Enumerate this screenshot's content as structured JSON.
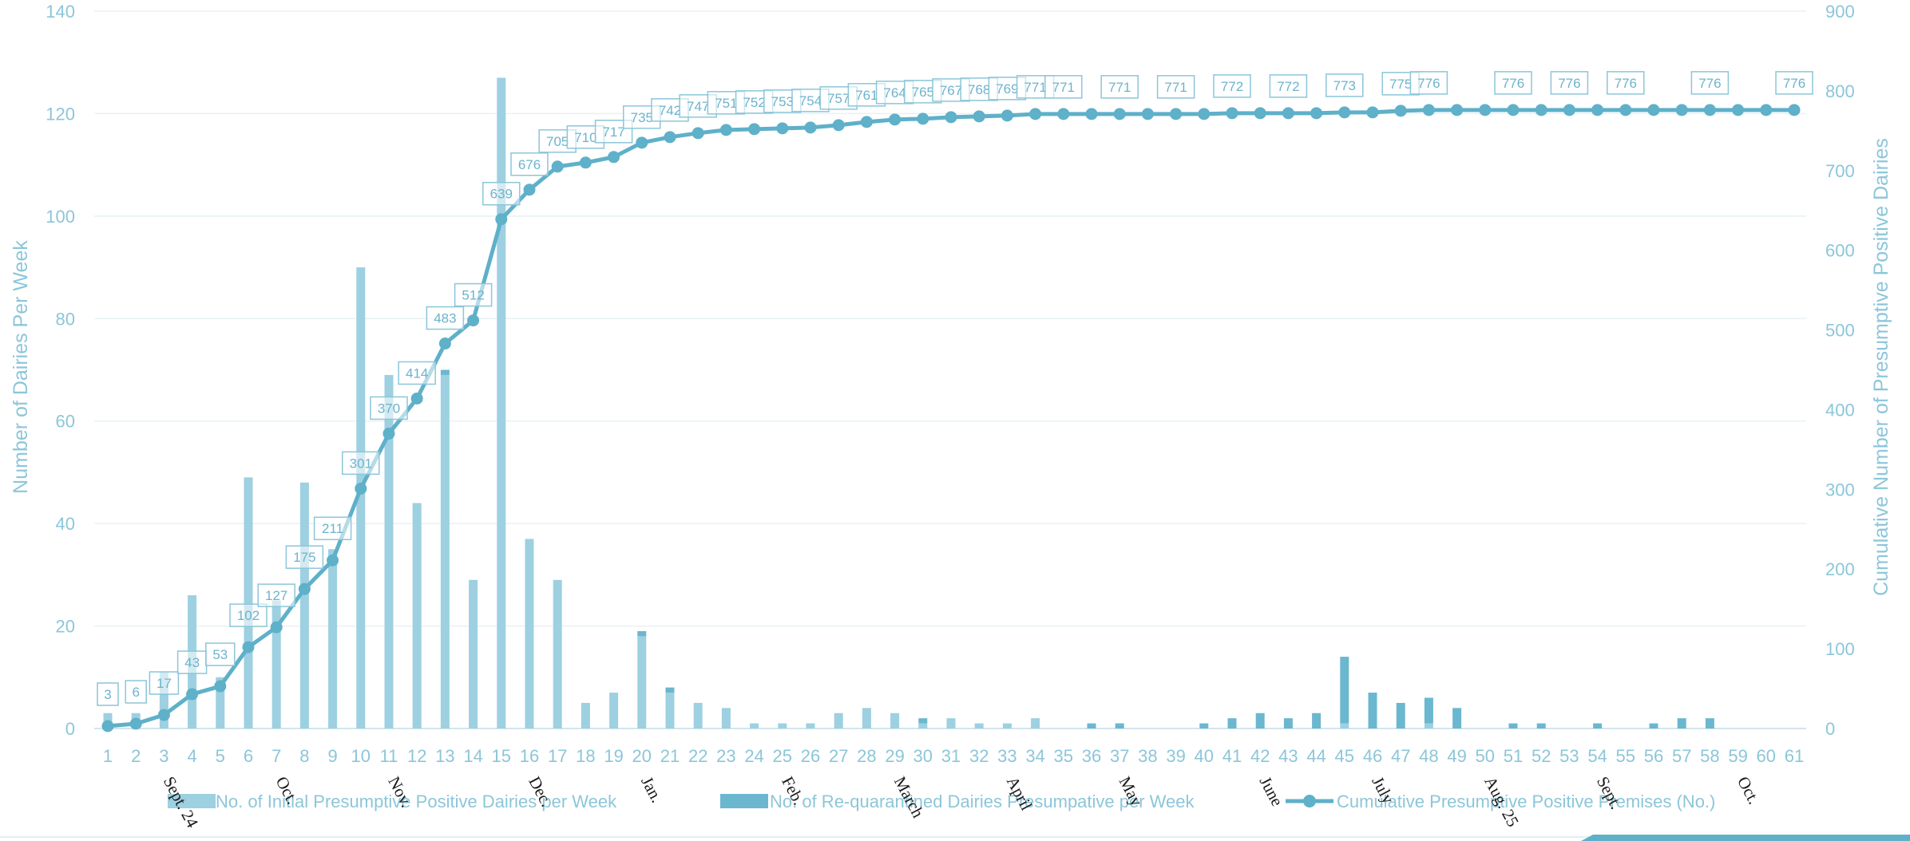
{
  "chart_data": {
    "type": "bar+line",
    "title": "",
    "x": [
      1,
      2,
      3,
      4,
      5,
      6,
      7,
      8,
      9,
      10,
      11,
      12,
      13,
      14,
      15,
      16,
      17,
      18,
      19,
      20,
      21,
      22,
      23,
      24,
      25,
      26,
      27,
      28,
      29,
      30,
      31,
      32,
      33,
      34,
      35,
      36,
      37,
      38,
      39,
      40,
      41,
      42,
      43,
      44,
      45,
      46,
      47,
      48,
      49,
      50,
      51,
      52,
      53,
      54,
      55,
      56,
      57,
      58,
      59,
      60,
      61
    ],
    "ylabel_left": "Number of Dairies Per Week",
    "ylabel_right": "Cumulative Number of Presumptive Positive Dairies",
    "ylim_left": [
      0,
      140
    ],
    "ylim_right": [
      0,
      900
    ],
    "yticks_left": [
      0,
      20,
      40,
      60,
      80,
      100,
      120,
      140
    ],
    "yticks_right": [
      0,
      100,
      200,
      300,
      400,
      500,
      600,
      700,
      800,
      900
    ],
    "grid": "horizontal",
    "legend_position": "bottom",
    "series": [
      {
        "name": "No. of Initial Presumptive Positive Dairies per Week",
        "kind": "bar",
        "axis": "left",
        "color": "#9dd0e1",
        "values": [
          3,
          3,
          11,
          26,
          10,
          49,
          25,
          48,
          35,
          90,
          69,
          44,
          69,
          29,
          127,
          37,
          29,
          5,
          7,
          18,
          7,
          5,
          4,
          1,
          1,
          1,
          3,
          4,
          3,
          1,
          2,
          1,
          1,
          2,
          0,
          0,
          0,
          0,
          0,
          0,
          0,
          0,
          0,
          0,
          1,
          0,
          0,
          1,
          0,
          0,
          0,
          0,
          0,
          0,
          0,
          0,
          0,
          0,
          0,
          0,
          0
        ]
      },
      {
        "name": "No. of Re-quarantined Dairies Presumpative per Week",
        "kind": "bar",
        "axis": "left",
        "color": "#6bb7cf",
        "values": [
          0,
          0,
          0,
          0,
          0,
          0,
          0,
          0,
          0,
          0,
          0,
          0,
          1,
          0,
          0,
          0,
          0,
          0,
          0,
          1,
          1,
          0,
          0,
          0,
          0,
          0,
          0,
          0,
          0,
          1,
          0,
          0,
          0,
          0,
          0,
          1,
          1,
          0,
          0,
          1,
          2,
          3,
          2,
          3,
          13,
          7,
          5,
          5,
          4,
          0,
          1,
          1,
          0,
          1,
          0,
          1,
          2,
          2,
          0,
          0,
          0
        ]
      },
      {
        "name": "Cumulative Presumptive Positive Premises (No.)",
        "kind": "line",
        "axis": "right",
        "color": "#5fb0c9",
        "values": [
          3,
          6,
          17,
          43,
          53,
          102,
          127,
          175,
          211,
          301,
          370,
          414,
          483,
          512,
          639,
          676,
          705,
          710,
          717,
          735,
          742,
          747,
          751,
          752,
          753,
          754,
          757,
          761,
          764,
          765,
          767,
          768,
          769,
          771,
          771,
          771,
          771,
          771,
          771,
          771,
          772,
          772,
          772,
          772,
          773,
          773,
          775,
          776,
          776,
          776,
          776,
          776,
          776,
          776,
          776,
          776,
          776,
          776,
          776,
          776,
          776
        ]
      }
    ],
    "data_labels": [
      {
        "x": 1,
        "text": "3"
      },
      {
        "x": 2,
        "text": "6"
      },
      {
        "x": 3,
        "text": "17"
      },
      {
        "x": 4,
        "text": "43"
      },
      {
        "x": 5,
        "text": "53"
      },
      {
        "x": 6,
        "text": "102"
      },
      {
        "x": 7,
        "text": "127"
      },
      {
        "x": 8,
        "text": "175"
      },
      {
        "x": 9,
        "text": "211"
      },
      {
        "x": 10,
        "text": "301"
      },
      {
        "x": 11,
        "text": "370"
      },
      {
        "x": 12,
        "text": "414"
      },
      {
        "x": 13,
        "text": "483"
      },
      {
        "x": 14,
        "text": "512"
      },
      {
        "x": 15,
        "text": "639"
      },
      {
        "x": 16,
        "text": "676"
      },
      {
        "x": 17,
        "text": "705"
      },
      {
        "x": 18,
        "text": "710"
      },
      {
        "x": 19,
        "text": "717"
      },
      {
        "x": 20,
        "text": "735"
      },
      {
        "x": 21,
        "text": "742"
      },
      {
        "x": 22,
        "text": "747"
      },
      {
        "x": 23,
        "text": "751"
      },
      {
        "x": 24,
        "text": "752"
      },
      {
        "x": 25,
        "text": "753"
      },
      {
        "x": 26,
        "text": "754"
      },
      {
        "x": 27,
        "text": "757"
      },
      {
        "x": 28,
        "text": "761"
      },
      {
        "x": 29,
        "text": "764"
      },
      {
        "x": 30,
        "text": "765"
      },
      {
        "x": 31,
        "text": "767"
      },
      {
        "x": 32,
        "text": "768"
      },
      {
        "x": 33,
        "text": "769"
      },
      {
        "x": 34,
        "text": "771"
      },
      {
        "x": 35,
        "text": "771"
      },
      {
        "x": 37,
        "text": "771"
      },
      {
        "x": 39,
        "text": "771"
      },
      {
        "x": 41,
        "text": "772"
      },
      {
        "x": 43,
        "text": "772"
      },
      {
        "x": 45,
        "text": "773"
      },
      {
        "x": 47,
        "text": "775"
      },
      {
        "x": 48,
        "text": "776"
      },
      {
        "x": 51,
        "text": "776"
      },
      {
        "x": 53,
        "text": "776"
      },
      {
        "x": 55,
        "text": "776"
      },
      {
        "x": 58,
        "text": "776"
      },
      {
        "x": 61,
        "text": "776"
      }
    ],
    "month_labels": [
      {
        "x": 2,
        "text": "Sept. 24"
      },
      {
        "x": 6,
        "text": "Oct."
      },
      {
        "x": 10,
        "text": "Nov."
      },
      {
        "x": 15,
        "text": "Dec."
      },
      {
        "x": 19,
        "text": "Jan."
      },
      {
        "x": 24,
        "text": "Feb."
      },
      {
        "x": 28,
        "text": "March"
      },
      {
        "x": 32,
        "text": "April"
      },
      {
        "x": 36,
        "text": "May"
      },
      {
        "x": 41,
        "text": "June"
      },
      {
        "x": 45,
        "text": "July"
      },
      {
        "x": 49,
        "text": "Aug. 25"
      },
      {
        "x": 53,
        "text": "Sept."
      },
      {
        "x": 58,
        "text": "Oct."
      }
    ]
  }
}
